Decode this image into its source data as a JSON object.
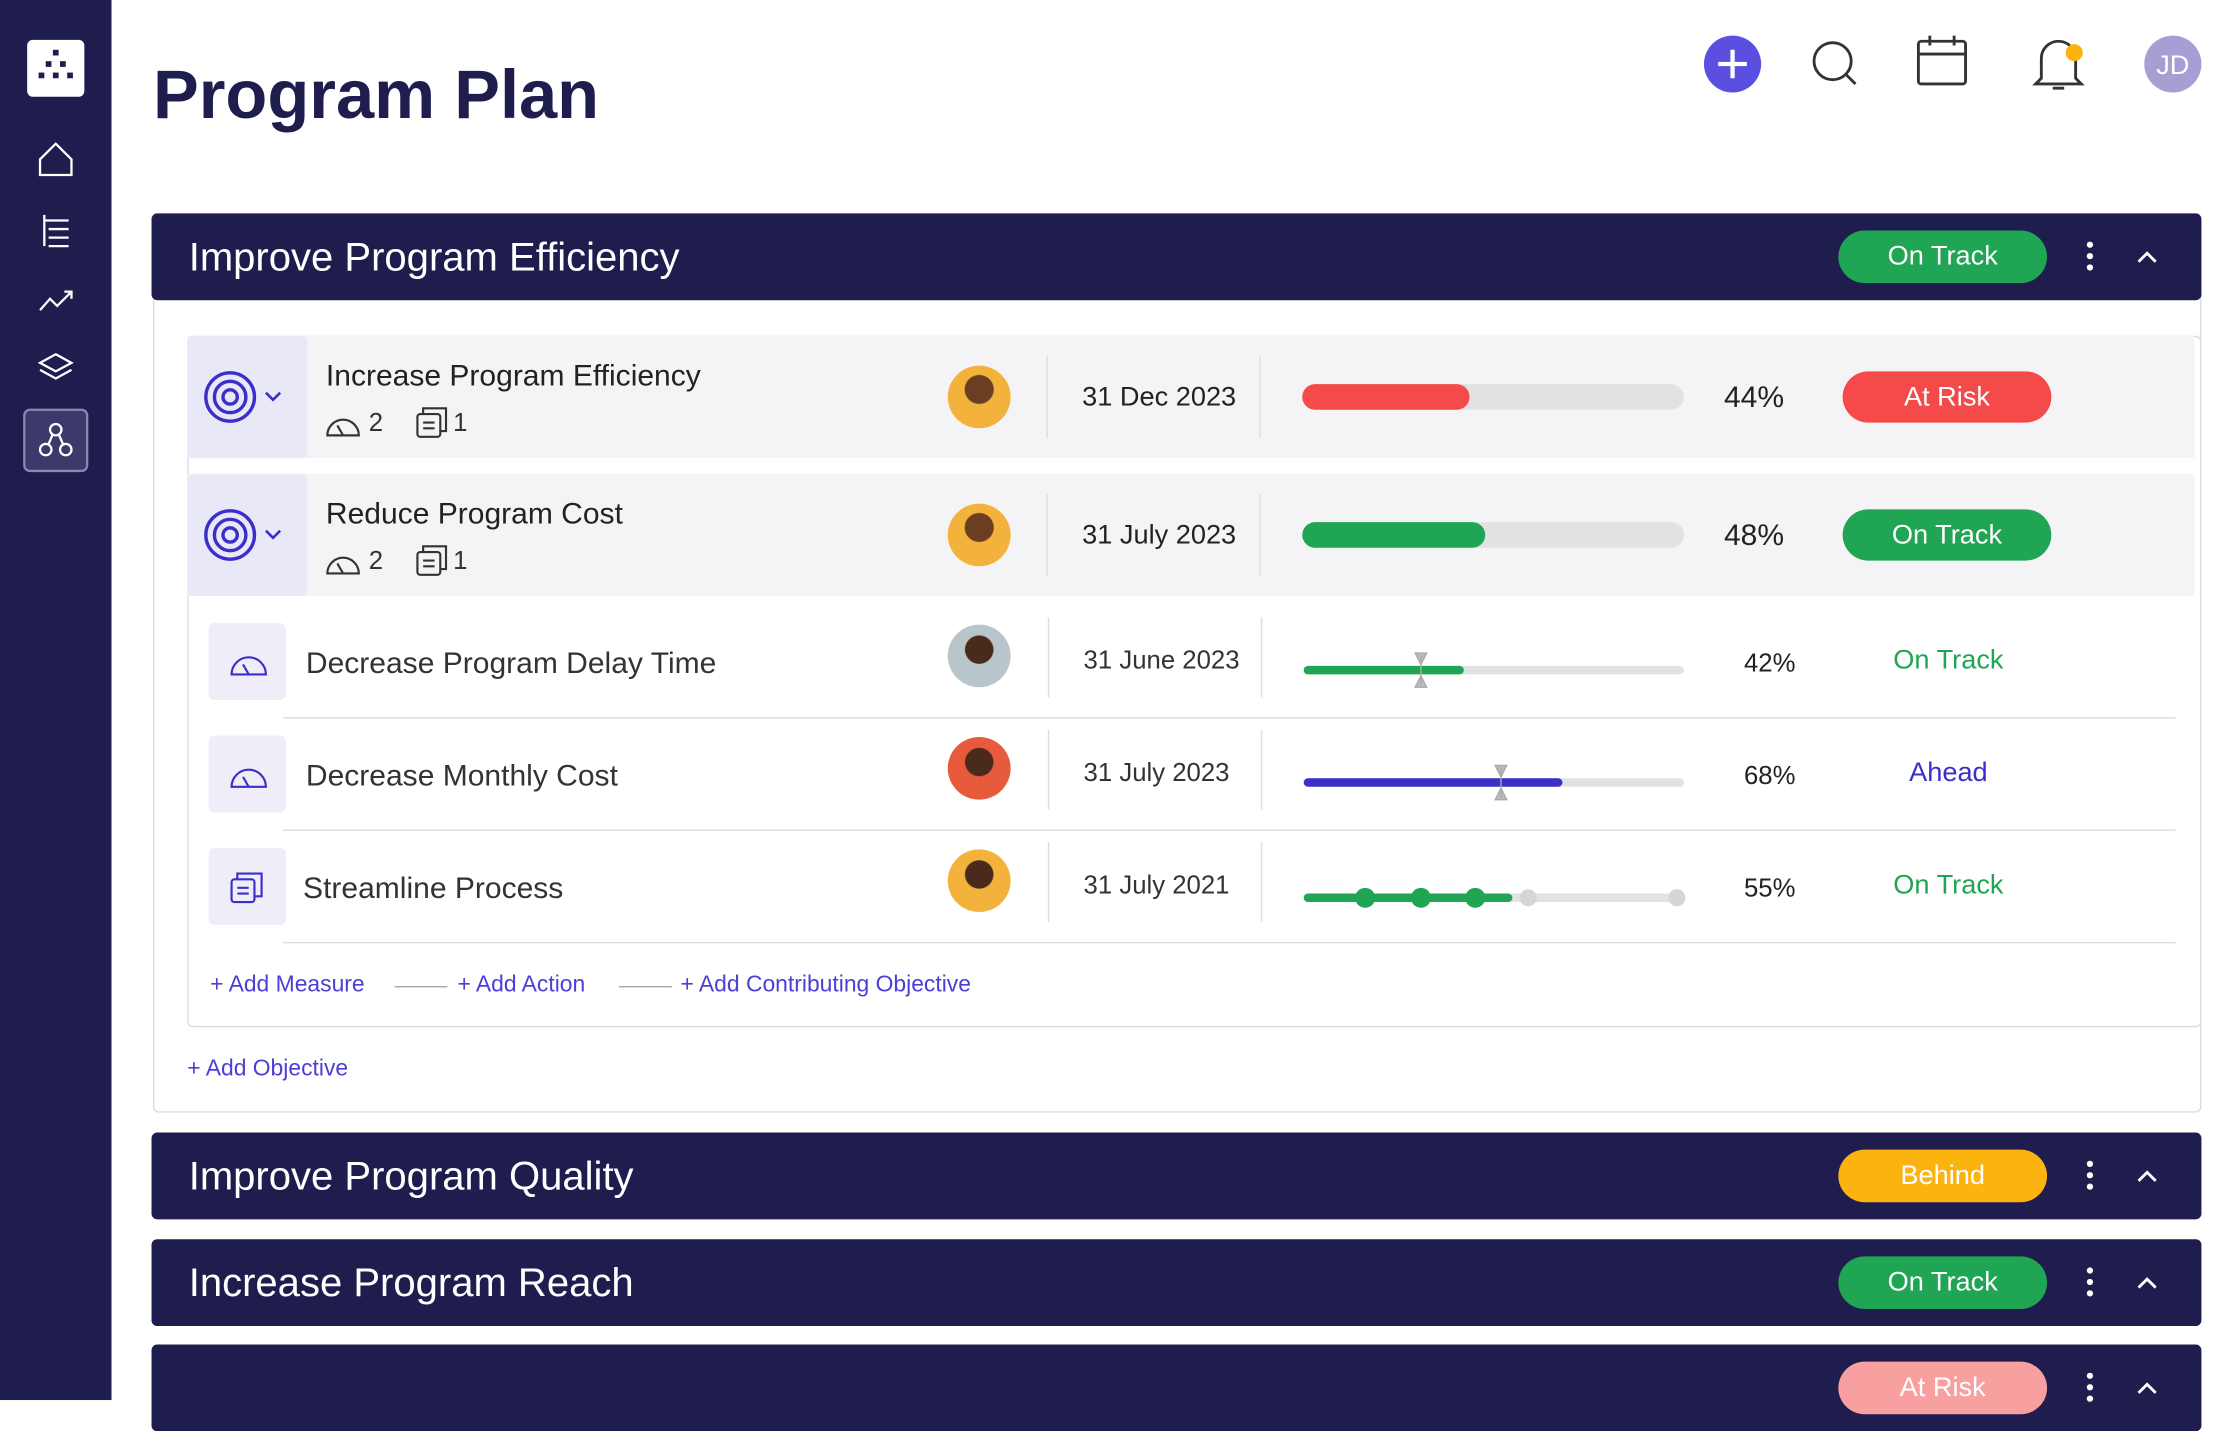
{
  "header": {
    "title": "Program Plan",
    "user_initials": "JD"
  },
  "sections": [
    {
      "title": "Improve Program Efficiency",
      "status": "On Track",
      "status_color": "#1fa553",
      "objectives": [
        {
          "name": "Increase Program Efficiency",
          "measures": 2,
          "actions": 1,
          "date": "31 Dec 2023",
          "progress": 44,
          "progress_label": "44%",
          "bar_color": "#f44a4a",
          "status": "At Risk",
          "status_color": "#f44a4a"
        },
        {
          "name": "Reduce Program Cost",
          "measures": 2,
          "actions": 1,
          "date": "31 July 2023",
          "progress": 48,
          "progress_label": "48%",
          "bar_color": "#1fa553",
          "status": "On Track",
          "status_color": "#1fa553"
        }
      ],
      "items": [
        {
          "name": "Decrease Program Delay Time",
          "date": "31 June 2023",
          "progress": 42,
          "progress_label": "42%",
          "target": 31,
          "bar_color": "#1fa553",
          "status": "On Track",
          "status_color": "#1fa553"
        },
        {
          "name": "Decrease Monthly Cost",
          "date": "31 July 2023",
          "progress": 68,
          "progress_label": "68%",
          "target": 52,
          "bar_color": "#3b2fc9",
          "status": "Ahead",
          "status_color": "#3b2fc9"
        },
        {
          "name": "Streamline Process",
          "date": "31 July 2021",
          "progress": 55,
          "progress_label": "55%",
          "milestones": [
            16,
            31,
            45,
            59,
            98
          ],
          "bar_color": "#1fa553",
          "status": "On Track",
          "status_color": "#1fa553"
        }
      ],
      "links": [
        "+ Add Measure",
        "+ Add Action",
        "+ Add Contributing Objective"
      ],
      "add_objective": "+ Add Objective"
    },
    {
      "title": "Improve Program Quality",
      "status": "Behind",
      "status_color": "#fbb30f"
    },
    {
      "title": "Increase Program Reach",
      "status": "On Track",
      "status_color": "#1fa553"
    },
    {
      "status": "At Risk",
      "status_color": "#f8a0a0"
    }
  ]
}
